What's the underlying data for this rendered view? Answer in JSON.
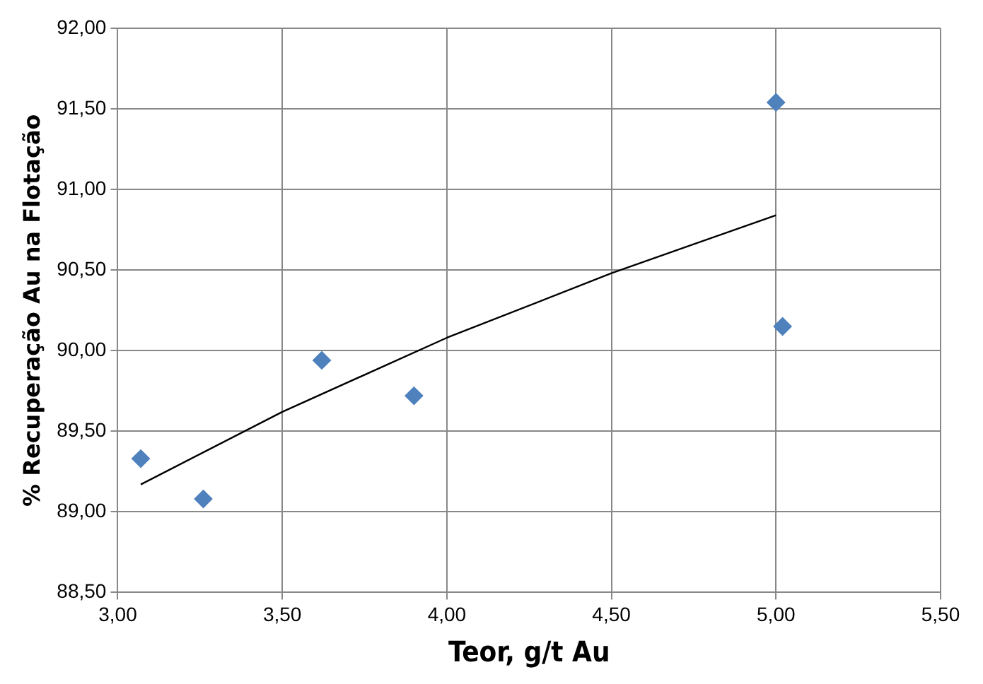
{
  "chart_data": {
    "type": "scatter",
    "xlabel": "Teor, g/t Au",
    "ylabel": "% Recuperação Au na Flotação",
    "xlim": [
      3,
      5.5
    ],
    "xticks": [
      {
        "value": 3,
        "label": "3,00"
      },
      {
        "value": 3.5,
        "label": "3,50"
      },
      {
        "value": 4,
        "label": "4,00"
      },
      {
        "value": 4.5,
        "label": "4,50"
      },
      {
        "value": 5,
        "label": "5,00"
      },
      {
        "value": 5.5,
        "label": "5,50"
      }
    ],
    "ylim": [
      88.5,
      92
    ],
    "yticks": [
      {
        "value": 88.5,
        "label": "88,50"
      },
      {
        "value": 89,
        "label": "89,00"
      },
      {
        "value": 89.5,
        "label": "89,50"
      },
      {
        "value": 90,
        "label": "90,00"
      },
      {
        "value": 90.5,
        "label": "90,50"
      },
      {
        "value": 91,
        "label": "91,00"
      },
      {
        "value": 91.5,
        "label": "91,50"
      },
      {
        "value": 92,
        "label": "92,00"
      }
    ],
    "grid": true,
    "legend": false,
    "marker": "diamond",
    "series": [
      {
        "type": "scatter",
        "color": "#4f81bd",
        "x": [
          3.07,
          3.26,
          3.62,
          3.9,
          5.0,
          5.02
        ],
        "values": [
          89.33,
          89.08,
          89.94,
          89.72,
          91.54,
          90.15
        ]
      },
      {
        "type": "line",
        "color": "#000000",
        "marker": "none",
        "x": [
          3.07,
          3.5,
          4.0,
          4.5,
          5.0
        ],
        "values": [
          89.17,
          89.62,
          90.08,
          90.48,
          90.84
        ]
      }
    ]
  }
}
